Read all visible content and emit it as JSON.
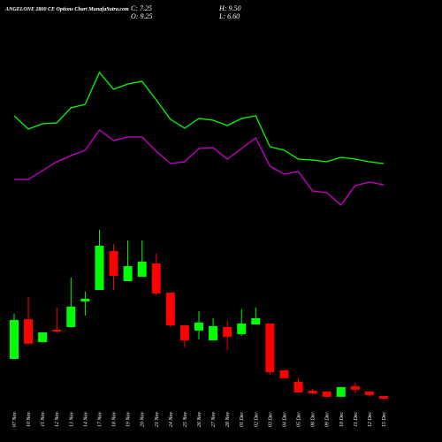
{
  "chart_data": {
    "type": "candlestick",
    "title": "ANGELONE 2800 CE Options Chart MunafaSutra.com",
    "ohlc_texts": {
      "close": "C: 7.25",
      "high": "H: 9.50",
      "open": "O: 9.25",
      "low": "L: 6.60"
    },
    "categories": [
      "07 Nov",
      "10 Nov",
      "11 Nov",
      "12 Nov",
      "13 Nov",
      "14 Nov",
      "17 Nov",
      "18 Nov",
      "19 Nov",
      "20 Nov",
      "21 Nov",
      "24 Nov",
      "25 Nov",
      "26 Nov",
      "27 Nov",
      "28 Nov",
      "01 Dec",
      "02 Dec",
      "03 Dec",
      "04 Dec",
      "05 Dec",
      "08 Dec",
      "09 Dec",
      "10 Dec",
      "11 Dec",
      "12 Dec",
      "15 Dec"
    ],
    "open": [
      37.3,
      67.3,
      50,
      59.3,
      61.3,
      80.7,
      89.3,
      118.7,
      96,
      99.3,
      109.3,
      87.3,
      62.7,
      58.7,
      51.3,
      61.3,
      56,
      63.3,
      64,
      28.7,
      20,
      13.3,
      12.7,
      8.7,
      16.7,
      12.7,
      9.25
    ],
    "high": [
      71.3,
      84,
      57.3,
      76,
      98.7,
      88,
      134.7,
      124,
      126.7,
      126.7,
      116.7,
      87.3,
      62.7,
      73.3,
      68,
      66,
      74.7,
      76,
      64,
      28.7,
      23.3,
      14.7,
      12.7,
      16,
      19.3,
      12.7,
      9.5
    ],
    "low": [
      37.3,
      48.7,
      50,
      56.7,
      61.3,
      70,
      89.3,
      89.3,
      96,
      99.3,
      85.3,
      61.3,
      46,
      52,
      51.3,
      44,
      54.7,
      63.3,
      25.3,
      22.7,
      12,
      10.7,
      8.7,
      8.7,
      11.3,
      9.3,
      6.6
    ],
    "close": [
      66.7,
      48.7,
      57.3,
      58,
      76.7,
      82.7,
      122.7,
      100,
      107.3,
      110.7,
      86.7,
      62.7,
      51.3,
      64.7,
      62,
      54,
      64,
      68,
      27.3,
      22.7,
      12,
      11.3,
      8.7,
      16,
      14,
      10,
      7.25
    ],
    "up_color": "#00ff00",
    "down_color": "#ff0000",
    "series": [
      {
        "color": "#00ff00",
        "values": [
          119,
          104,
          110,
          111,
          128,
          132,
          168,
          149,
          155,
          158,
          137,
          115,
          105,
          116,
          114,
          108,
          116,
          119,
          84,
          80,
          70,
          69,
          67,
          72,
          70,
          67,
          65
        ]
      },
      {
        "color": "#cc00cc",
        "values": [
          47,
          47,
          57,
          67,
          74,
          80,
          103,
          91,
          95,
          95,
          79,
          65,
          67,
          82,
          83,
          70,
          82,
          94,
          62,
          53,
          56,
          34,
          32,
          18,
          40,
          44,
          41
        ]
      }
    ]
  }
}
